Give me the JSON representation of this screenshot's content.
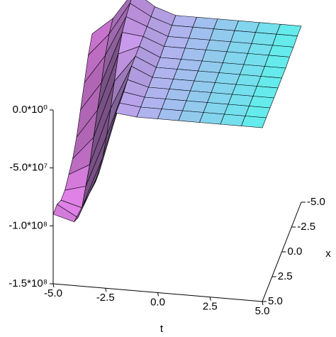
{
  "chart_data": {
    "type": "surface3d",
    "x_label": "t",
    "y_label": "x",
    "t": [
      -5,
      -4,
      -3,
      -2,
      -1,
      0,
      1,
      2,
      3,
      4,
      5
    ],
    "x": [
      -5,
      -4,
      -3,
      -2,
      -1,
      0,
      1,
      2,
      3,
      4,
      5
    ],
    "z": [
      [
        -20000000.0,
        -30000000.0,
        -45000000.0,
        -60000000.0,
        -75000000.0,
        -85000000.0,
        -90000000.0,
        -95000000.0,
        -95000000.0,
        -90000000.0,
        -90000000.0
      ],
      [
        -5000000.0,
        -10000000.0,
        -20000000.0,
        -35000000.0,
        -50000000.0,
        -65000000.0,
        -80000000.0,
        -90000000.0,
        -100000000.0,
        -100000000.0,
        -95000000.0
      ],
      [
        20000000.0,
        18000000.0,
        15000000.0,
        10000000.0,
        0,
        -15000000.0,
        -30000000.0,
        -45000000.0,
        -55000000.0,
        -60000000.0,
        -60000000.0
      ],
      [
        8000000.0,
        8000000.0,
        8000000.0,
        8000000.0,
        8000000.0,
        8000000.0,
        8000000.0,
        5000000.0,
        3000000.0,
        2000000.0,
        2000000.0
      ],
      [
        2000000.0,
        2000000.0,
        1000000.0,
        1000000.0,
        0,
        0,
        0,
        0,
        0,
        0,
        0
      ],
      [
        2000000.0,
        2000000.0,
        1000000.0,
        1000000.0,
        0,
        0,
        0,
        0,
        0,
        0,
        0
      ],
      [
        2000000.0,
        2000000.0,
        1000000.0,
        1000000.0,
        0,
        0,
        0,
        0,
        0,
        0,
        0
      ],
      [
        2000000.0,
        2000000.0,
        1000000.0,
        1000000.0,
        0,
        0,
        0,
        0,
        0,
        0,
        0
      ],
      [
        2000000.0,
        2000000.0,
        1000000.0,
        1000000.0,
        0,
        0,
        0,
        0,
        0,
        0,
        0
      ],
      [
        2000000.0,
        2000000.0,
        1000000.0,
        1000000.0,
        0,
        0,
        0,
        0,
        0,
        0,
        0
      ],
      [
        2000000.0,
        2000000.0,
        1000000.0,
        1000000.0,
        0,
        0,
        0,
        0,
        0,
        0,
        0
      ]
    ],
    "xlim": [
      -5,
      5
    ],
    "ylim": [
      -5,
      5
    ],
    "zlim": [
      -150000000,
      0
    ],
    "xticks": [
      {
        "value": -5,
        "label": "-5.0"
      },
      {
        "value": -2.5,
        "label": "-2.5"
      },
      {
        "value": 0,
        "label": "0.0"
      },
      {
        "value": 2.5,
        "label": "2.5"
      },
      {
        "value": 5,
        "label": "5.0"
      }
    ],
    "yticks": [
      {
        "value": -5,
        "label": "-5.0"
      },
      {
        "value": -2.5,
        "label": "-2.5"
      },
      {
        "value": 0,
        "label": "0.0"
      },
      {
        "value": 2.5,
        "label": "2.5"
      },
      {
        "value": 5,
        "label": "5.0"
      }
    ],
    "zticks": [
      {
        "value": 0,
        "label": "0.0*10⁰"
      },
      {
        "value": -50000000,
        "label": "-5.0*10⁷"
      },
      {
        "value": -100000000,
        "label": "-1.0*10⁸"
      },
      {
        "value": -150000000,
        "label": "-1.5*10⁸"
      }
    ],
    "colormap": [
      "#f282f2",
      "#5ef0ec"
    ]
  }
}
